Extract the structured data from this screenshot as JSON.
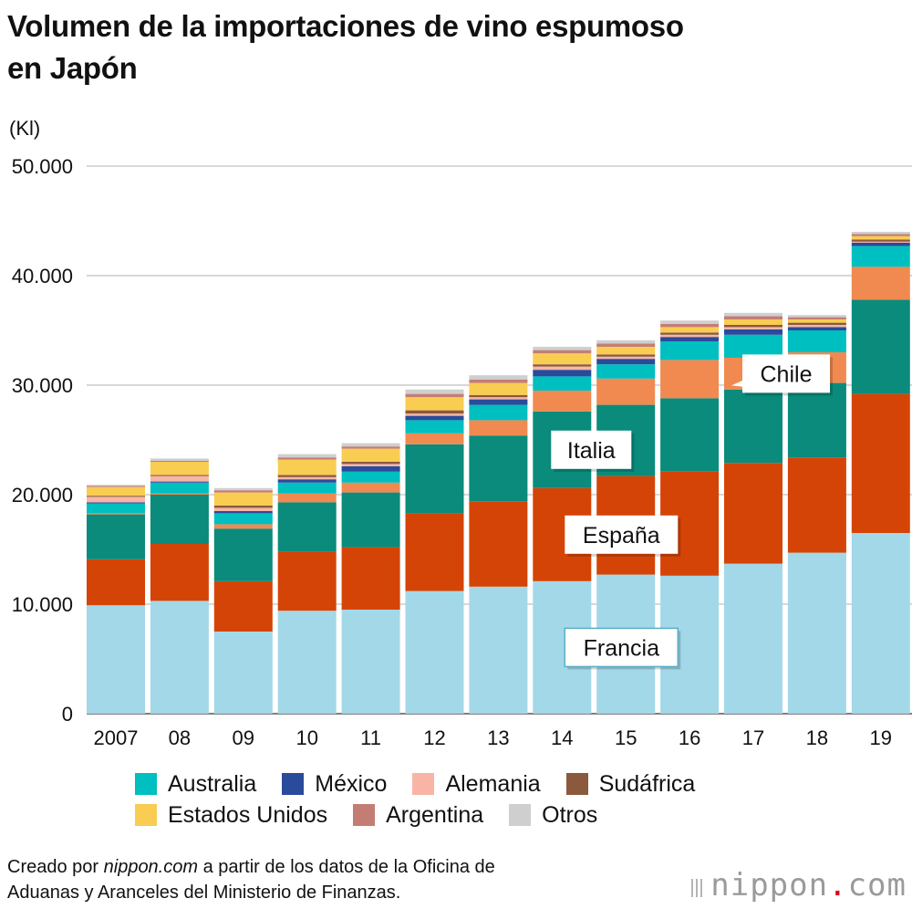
{
  "title_line1": "Volumen de la importaciones de vino espumoso",
  "title_line2": "en Japón",
  "unit": "(Kl)",
  "legend": [
    {
      "label": "Australia",
      "color": "#00bfc0"
    },
    {
      "label": "México",
      "color": "#2a4b9b"
    },
    {
      "label": "Alemania",
      "color": "#f8b5a6"
    },
    {
      "label": "Sudáfrica",
      "color": "#8b5a3c"
    },
    {
      "label": "Estados Unidos",
      "color": "#f9cd52"
    },
    {
      "label": "Argentina",
      "color": "#c47d74"
    },
    {
      "label": "Otros",
      "color": "#cfcfcf"
    }
  ],
  "source": {
    "prefix": "Creado por ",
    "site": "nippon.com",
    "line1_rest": " a partir de los datos de la Oficina de",
    "line2": "Aduanas y Aranceles del Ministerio de Finanzas."
  },
  "brand": {
    "name": "nippon",
    "dot": ".",
    "tld": "com"
  },
  "chart_data": {
    "type": "bar",
    "stacked": true,
    "categories": [
      "2007",
      "08",
      "09",
      "10",
      "11",
      "12",
      "13",
      "14",
      "15",
      "16",
      "17",
      "18",
      "19"
    ],
    "ylim": [
      0,
      50000
    ],
    "yticks": [
      "0",
      "10.000",
      "20.000",
      "30.000",
      "40.000",
      "50.000"
    ],
    "ytick_values": [
      0,
      10000,
      20000,
      30000,
      40000,
      50000
    ],
    "grid": true,
    "legend_position": "bottom",
    "series": [
      {
        "name": "Francia",
        "color": "#a3d8e8",
        "values": [
          9900,
          10300,
          7500,
          9400,
          9500,
          11200,
          11600,
          12100,
          12700,
          12600,
          13700,
          14700,
          16500
        ]
      },
      {
        "name": "España",
        "color": "#d54407",
        "values": [
          4200,
          5200,
          4600,
          5400,
          5700,
          7100,
          7800,
          8500,
          9000,
          9500,
          9200,
          8700,
          12700
        ]
      },
      {
        "name": "Italia",
        "color": "#0a8b7b",
        "values": [
          4100,
          4500,
          4800,
          4500,
          5000,
          6300,
          6000,
          7000,
          6500,
          6700,
          6700,
          6800,
          8600
        ]
      },
      {
        "name": "Chile",
        "color": "#f08a50",
        "values": [
          100,
          100,
          400,
          800,
          900,
          1000,
          1400,
          1900,
          2400,
          3500,
          2900,
          2800,
          3000
        ]
      },
      {
        "name": "Australia",
        "color": "#00bfc0",
        "values": [
          900,
          1000,
          1000,
          1000,
          1000,
          1200,
          1400,
          1300,
          1300,
          1700,
          2100,
          2000,
          1900
        ]
      },
      {
        "name": "México",
        "color": "#2a4b9b",
        "values": [
          100,
          100,
          200,
          300,
          500,
          400,
          500,
          600,
          500,
          400,
          500,
          300,
          300
        ]
      },
      {
        "name": "Alemania",
        "color": "#f8b5a6",
        "values": [
          500,
          500,
          300,
          200,
          200,
          200,
          200,
          300,
          200,
          200,
          200,
          200,
          100
        ]
      },
      {
        "name": "Sudáfrica",
        "color": "#8b5a3c",
        "values": [
          100,
          100,
          200,
          200,
          200,
          300,
          200,
          200,
          200,
          200,
          200,
          200,
          200
        ]
      },
      {
        "name": "Estados Unidos",
        "color": "#f9cd52",
        "values": [
          800,
          1200,
          1200,
          1400,
          1200,
          1200,
          1100,
          1000,
          700,
          500,
          500,
          300,
          300
        ]
      },
      {
        "name": "Argentina",
        "color": "#c47d74",
        "values": [
          100,
          100,
          200,
          200,
          200,
          300,
          300,
          300,
          300,
          300,
          300,
          200,
          200
        ]
      },
      {
        "name": "Otros",
        "color": "#cfcfcf",
        "values": [
          100,
          200,
          200,
          300,
          300,
          400,
          400,
          300,
          300,
          300,
          300,
          200,
          200
        ]
      }
    ],
    "annotations": [
      {
        "label": "Francia",
        "series": "Francia"
      },
      {
        "label": "España",
        "series": "España"
      },
      {
        "label": "Italia",
        "series": "Italia"
      },
      {
        "label": "Chile",
        "series": "Chile"
      }
    ]
  }
}
